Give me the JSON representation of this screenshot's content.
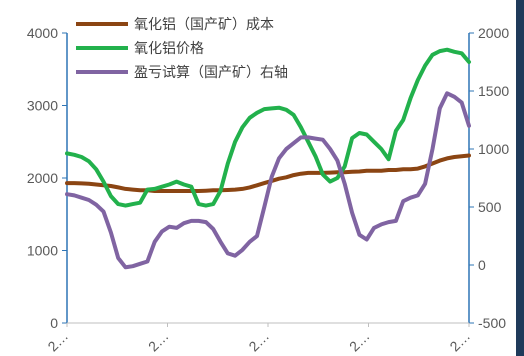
{
  "chart_data": {
    "type": "line",
    "title": "",
    "xlabel": "",
    "ylabel": "",
    "ylim": [
      0,
      4000
    ],
    "y2lim": [
      -500,
      2000
    ],
    "y_ticks": [
      "0",
      "1000",
      "2000",
      "3000",
      "4000"
    ],
    "y2_ticks": [
      "-500",
      "0",
      "500",
      "1000",
      "1500",
      "2000"
    ],
    "x_ticks": [
      "2…",
      "2…",
      "2…",
      "2…",
      "2…"
    ],
    "legend_position": "top-left",
    "series": [
      {
        "name": "氧化铝（国产矿）成本",
        "axis": "left",
        "color": "#8b4513",
        "values": [
          1930,
          1930,
          1925,
          1920,
          1910,
          1900,
          1890,
          1870,
          1850,
          1840,
          1830,
          1830,
          1820,
          1820,
          1820,
          1820,
          1820,
          1820,
          1820,
          1825,
          1830,
          1830,
          1835,
          1840,
          1850,
          1870,
          1900,
          1930,
          1960,
          1990,
          2010,
          2040,
          2060,
          2070,
          2070,
          2070,
          2075,
          2080,
          2080,
          2085,
          2090,
          2100,
          2100,
          2100,
          2110,
          2110,
          2120,
          2120,
          2130,
          2160,
          2200,
          2240,
          2270,
          2290,
          2300,
          2310
        ]
      },
      {
        "name": "氧化铝价格",
        "axis": "left",
        "color": "#22b14c",
        "values": [
          2340,
          2320,
          2290,
          2230,
          2120,
          1950,
          1750,
          1640,
          1620,
          1640,
          1660,
          1840,
          1850,
          1880,
          1910,
          1950,
          1910,
          1880,
          1640,
          1620,
          1640,
          1820,
          2200,
          2500,
          2700,
          2830,
          2900,
          2950,
          2960,
          2970,
          2940,
          2870,
          2700,
          2500,
          2300,
          2050,
          1950,
          2000,
          2160,
          2550,
          2620,
          2600,
          2500,
          2400,
          2260,
          2650,
          2800,
          3100,
          3350,
          3550,
          3700,
          3750,
          3770,
          3740,
          3720,
          3600
        ]
      },
      {
        "name": "盈亏试算（国产矿）右轴",
        "axis": "right",
        "color": "#8064a2",
        "values": [
          610,
          600,
          580,
          560,
          520,
          460,
          280,
          60,
          -20,
          -10,
          10,
          30,
          200,
          290,
          330,
          320,
          360,
          380,
          380,
          370,
          310,
          200,
          100,
          80,
          130,
          200,
          250,
          500,
          760,
          920,
          1000,
          1050,
          1100,
          1100,
          1090,
          1080,
          1000,
          900,
          700,
          450,
          260,
          220,
          320,
          350,
          370,
          380,
          550,
          580,
          600,
          700,
          1000,
          1350,
          1480,
          1450,
          1400,
          1200
        ]
      }
    ]
  }
}
